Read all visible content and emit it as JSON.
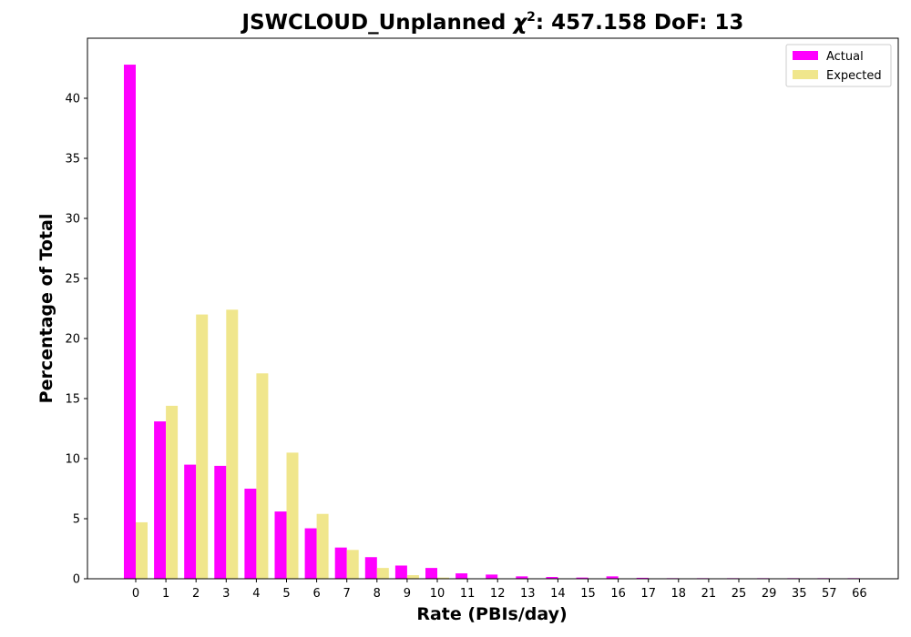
{
  "chart_data": {
    "type": "bar",
    "title_prefix": "JSWCLOUD_Unplanned ",
    "title_chi": "χ",
    "title_sup": "2",
    "title_suffix": ": 457.158 DoF: 13",
    "xlabel": "Rate (PBIs/day)",
    "ylabel": "Percentage of Total",
    "categories": [
      "0",
      "1",
      "2",
      "3",
      "4",
      "5",
      "6",
      "7",
      "8",
      "9",
      "10",
      "11",
      "12",
      "13",
      "14",
      "15",
      "16",
      "17",
      "18",
      "21",
      "25",
      "29",
      "35",
      "57",
      "66"
    ],
    "series": [
      {
        "name": "Actual",
        "color": "#ff00ff",
        "values": [
          42.8,
          13.1,
          9.5,
          9.4,
          7.5,
          5.6,
          4.2,
          2.6,
          1.8,
          1.1,
          0.9,
          0.45,
          0.35,
          0.2,
          0.15,
          0.1,
          0.2,
          0.08,
          0.05,
          0.05,
          0.05,
          0.05,
          0.05,
          0.05,
          0.05
        ]
      },
      {
        "name": "Expected",
        "color": "#f0e68c",
        "values": [
          4.7,
          14.4,
          22.0,
          22.4,
          17.1,
          10.5,
          5.4,
          2.4,
          0.9,
          0.3,
          0.1,
          0.03,
          0.01,
          0,
          0,
          0,
          0,
          0,
          0,
          0,
          0,
          0,
          0,
          0,
          0
        ]
      }
    ],
    "ylim": [
      0,
      45
    ],
    "yticks": [
      0,
      5,
      10,
      15,
      20,
      25,
      30,
      35,
      40
    ],
    "legend_position": "top-right",
    "grid": false
  }
}
